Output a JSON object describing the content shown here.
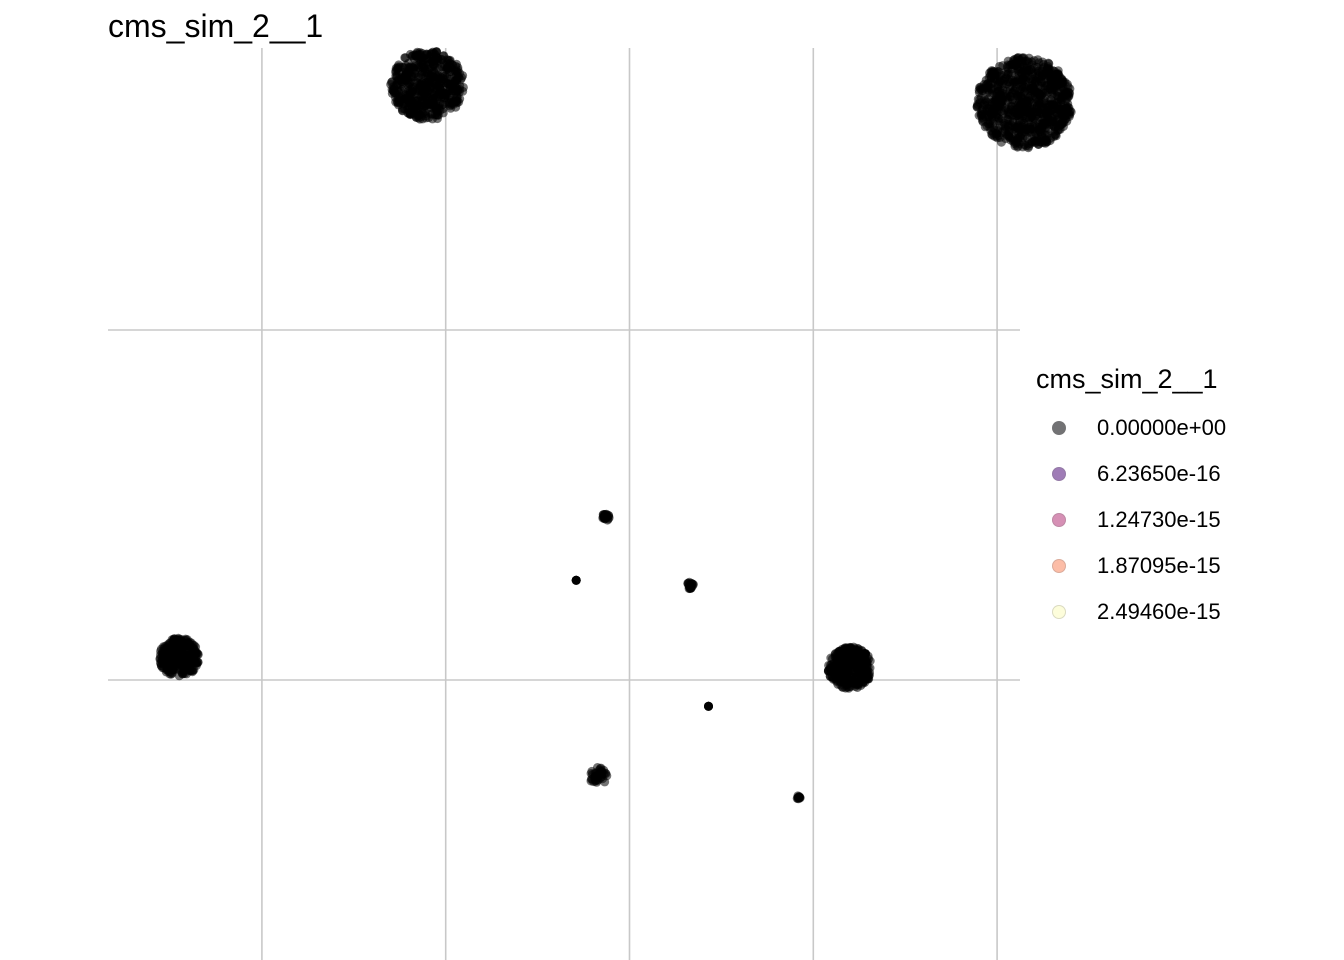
{
  "chart_data": {
    "type": "scatter",
    "title": "cms_sim_2__1",
    "xlabel": "",
    "ylabel": "",
    "grid": true,
    "legend_position": "right",
    "legend": {
      "title": "cms_sim_2__1",
      "entries": [
        {
          "label": "0.00000e+00",
          "color": "#000004"
        },
        {
          "label": "6.23650e-16",
          "color": "#51127C"
        },
        {
          "label": "1.24730e-15",
          "color": "#B63679"
        },
        {
          "label": "1.87095e-15",
          "color": "#FB8861"
        },
        {
          "label": "2.49460e-15",
          "color": "#FCFDBF"
        }
      ]
    },
    "point_color": "#000000",
    "clusters": [
      {
        "x": 1.4,
        "y": 3.4,
        "spread": 0.2,
        "n": 500
      },
      {
        "x": 4.65,
        "y": 3.3,
        "spread": 0.26,
        "n": 800
      },
      {
        "x": 0.05,
        "y": 0.13,
        "spread": 0.11,
        "n": 250
      },
      {
        "x": 3.7,
        "y": 0.07,
        "spread": 0.12,
        "n": 300
      },
      {
        "x": 2.37,
        "y": 0.93,
        "spread": 0.02,
        "n": 25
      },
      {
        "x": 2.21,
        "y": 0.57,
        "spread": 0.0,
        "n": 6
      },
      {
        "x": 2.83,
        "y": 0.54,
        "spread": 0.02,
        "n": 20
      },
      {
        "x": 2.93,
        "y": -0.15,
        "spread": 0.0,
        "n": 6
      },
      {
        "x": 2.33,
        "y": -0.55,
        "spread": 0.05,
        "n": 40
      },
      {
        "x": 3.42,
        "y": -0.67,
        "spread": 0.01,
        "n": 12
      }
    ]
  }
}
